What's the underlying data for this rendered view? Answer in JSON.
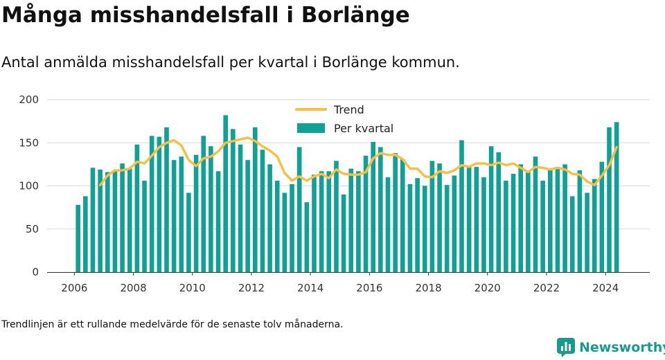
{
  "title": "Många misshandelsfall i Borlänge",
  "subtitle": "Antal anmälda misshandelsfall per kvartal i Borlänge kommun.",
  "note": "Trendlinjen är ett rullande medelvärde för de senaste tolv månaderna.",
  "brand": {
    "name": "Newsworthy",
    "icon": "bar-chart-logo-icon"
  },
  "colors": {
    "bars": "#10a096",
    "trend": "#f5c045",
    "grid": "#d9d9d9"
  },
  "chart_data": {
    "type": "bar",
    "ylim": [
      0,
      200
    ],
    "yticks": [
      0,
      50,
      100,
      150,
      200
    ],
    "xticks": [
      "2006",
      "2008",
      "2010",
      "2012",
      "2014",
      "2016",
      "2018",
      "2020",
      "2022",
      "2024"
    ],
    "grid": true,
    "legend_position": "top-center",
    "x_start": {
      "year": 2006,
      "quarter": 1
    },
    "series": [
      {
        "name": "Per kvartal",
        "kind": "bar",
        "values": [
          78,
          88,
          121,
          119,
          116,
          118,
          126,
          120,
          148,
          106,
          158,
          157,
          168,
          130,
          134,
          92,
          136,
          158,
          146,
          117,
          182,
          166,
          148,
          130,
          168,
          142,
          125,
          106,
          92,
          102,
          145,
          81,
          113,
          117,
          117,
          129,
          90,
          120,
          117,
          135,
          151,
          145,
          110,
          138,
          131,
          102,
          109,
          100,
          129,
          126,
          101,
          112,
          153,
          123,
          122,
          110,
          146,
          139,
          106,
          114,
          125,
          117,
          134,
          106,
          119,
          122,
          125,
          88,
          118,
          92,
          108,
          128,
          168,
          174
        ]
      },
      {
        "name": "Trend",
        "kind": "line",
        "values": [
          null,
          null,
          null,
          101,
          112,
          118,
          118,
          120,
          128,
          126,
          135,
          145,
          150,
          153,
          147,
          130,
          123,
          132,
          134,
          140,
          150,
          152,
          154,
          156,
          152,
          146,
          141,
          134,
          115,
          106,
          111,
          106,
          111,
          114,
          109,
          119,
          114,
          113,
          113,
          116,
          132,
          138,
          136,
          136,
          131,
          120,
          120,
          111,
          110,
          117,
          115,
          118,
          124,
          122,
          126,
          126,
          124,
          127,
          124,
          126,
          121,
          116,
          122,
          121,
          119,
          121,
          119,
          114,
          113,
          105,
          101,
          112,
          124,
          145
        ]
      }
    ]
  }
}
